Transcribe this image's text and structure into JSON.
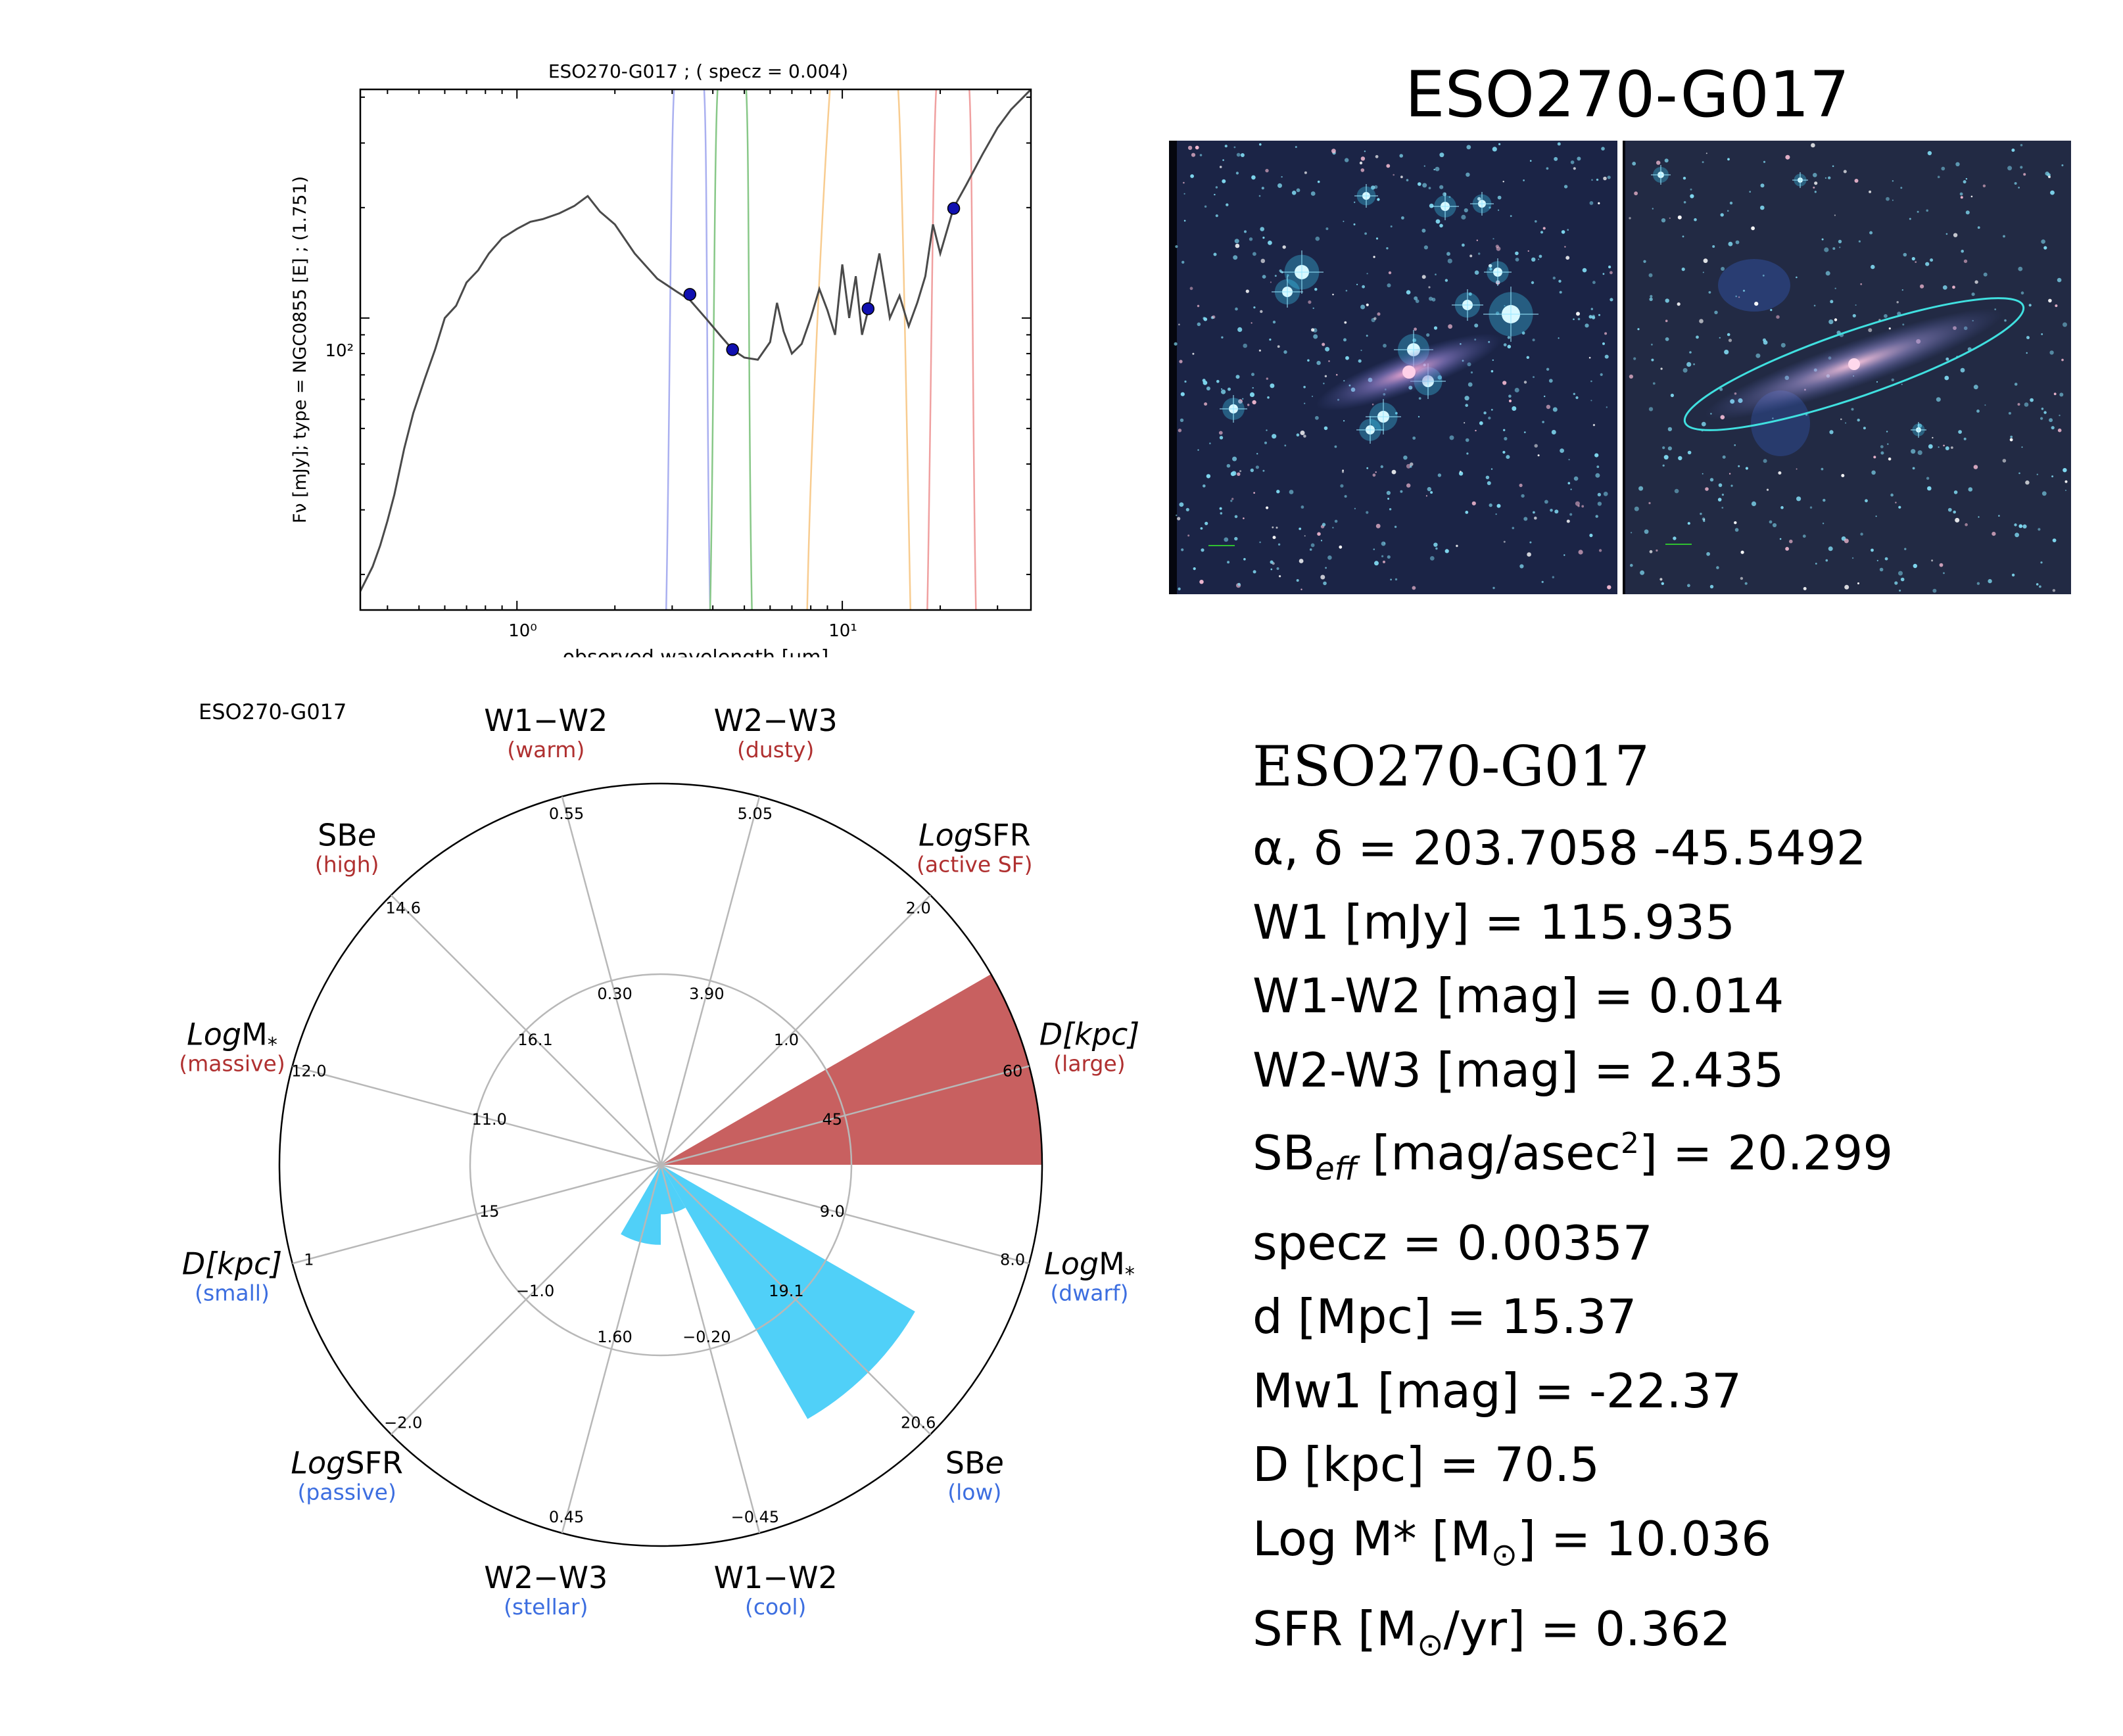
{
  "sed": {
    "title": "ESO270-G017 ; ( specz = 0.004)",
    "ylabel": "Fν [mJy];  type = NGC0855 [E] ; (1.751)",
    "xlabel": "observed wavelength [μm]",
    "x_ticks": [
      "10⁰",
      "10¹"
    ],
    "y_ticks": [
      "10²"
    ]
  },
  "image_panel": {
    "title": "ESO270-G017"
  },
  "polar": {
    "label": "ESO270-G017"
  },
  "info": {
    "name": "ESO270-G017",
    "radec": "α, δ = 203.7058 -45.5492",
    "w1": "W1 [mJy] = 115.935",
    "w1w2": "W1-W2 [mag] = 0.014",
    "w2w3": "W2-W3 [mag] = 2.435",
    "sb_prefix": "SB",
    "sb_sub": "eff",
    "sb_unit": " [mag/asec",
    "sb_sup": "2",
    "sb_value": "] = 20.299",
    "specz": "specz = 0.00357",
    "dist": "d [Mpc] = 15.37",
    "mw1": "Mw1 [mag] = -22.37",
    "diam": "D [kpc] = 70.5",
    "logm_prefix": "Log M* [M",
    "logm_sub": "⊙",
    "logm_value": "] = 10.036",
    "sfr_prefix": "SFR [M",
    "sfr_sub": "⊙",
    "sfr_value": "/yr] = 0.362"
  },
  "colors": {
    "sed_line": "#4a4a4a",
    "points": "#1010b0",
    "filter_w1": "#aab0f0",
    "filter_w2": "#88c888",
    "filter_w3": "#f8cc90",
    "filter_w4": "#f0a0a0",
    "bar_high": "#c86060",
    "bar_low": "#50d0f8",
    "axis_red": "#b03030",
    "axis_blue": "#3c6ee0"
  },
  "chart_data": [
    {
      "type": "line",
      "title": "ESO270-G017 ; ( specz = 0.004)",
      "xlabel": "observed wavelength [μm]",
      "ylabel": "Fν [mJy];  type = NGC0855 [E] ; (1.751)",
      "x_scale": "log",
      "y_scale": "log",
      "xlim": [
        0.33,
        38
      ],
      "ylim": [
        16,
        420
      ],
      "series": [
        {
          "role": "template",
          "x": [
            0.33,
            0.36,
            0.38,
            0.4,
            0.42,
            0.45,
            0.48,
            0.52,
            0.56,
            0.6,
            0.65,
            0.7,
            0.76,
            0.82,
            0.9,
            1.0,
            1.1,
            1.2,
            1.35,
            1.5,
            1.65,
            1.8,
            2.0,
            2.3,
            2.7,
            3.1,
            3.4,
            3.8,
            4.2,
            4.6,
            5.0,
            5.5,
            6.0,
            6.3,
            6.6,
            7.0,
            7.5,
            8.0,
            8.5,
            9.0,
            9.5,
            10.0,
            10.5,
            11.0,
            11.5,
            12.0,
            13.0,
            14.0,
            15.0,
            16.0,
            17.0,
            18.0,
            19.0,
            20.0,
            22.0,
            24.0,
            27.0,
            30.0,
            33.0,
            36.0,
            38.0
          ],
          "y": [
            18,
            21,
            24,
            28,
            33,
            44,
            55,
            68,
            82,
            100,
            108,
            125,
            135,
            150,
            165,
            175,
            183,
            186,
            193,
            202,
            215,
            195,
            180,
            150,
            128,
            118,
            112,
            100,
            90,
            82,
            78,
            77,
            86,
            110,
            92,
            80,
            85,
            100,
            120,
            105,
            90,
            140,
            100,
            130,
            90,
            105,
            150,
            100,
            115,
            95,
            110,
            130,
            180,
            150,
            200,
            230,
            280,
            330,
            370,
            400,
            420
          ]
        },
        {
          "role": "photometry",
          "x": [
            3.4,
            4.6,
            12.0,
            22.0
          ],
          "y": [
            116,
            82,
            106,
            199
          ]
        }
      ]
    },
    {
      "type": "polar-bar",
      "label": "ESO270-G017",
      "axes": [
        "D[kpc]",
        "LogM*",
        "SBe",
        "W1−W2",
        "W2−W3",
        "LogSFR",
        "D[kpc]",
        "LogM*",
        "SBe",
        "W1−W2",
        "W2−W3",
        "LogSFR"
      ],
      "axis_sublabels": [
        "(large)",
        "(dwarf)",
        "(low)",
        "(cool)",
        "(stellar)",
        "(passive)",
        "(small)",
        "(massive)",
        "(high)",
        "(warm)",
        "(dusty)",
        "(active SF)"
      ],
      "inner_ticks": [
        "45",
        "9.0",
        "19.1",
        "−0.20",
        "1.60",
        "−1.0",
        "15",
        "11.0",
        "16.1",
        "0.30",
        "3.90",
        "1.0"
      ],
      "outer_ticks": [
        "60",
        "8.0",
        "20.6",
        "−0.45",
        "0.45",
        "−2.0",
        "1",
        "12.0",
        "14.6",
        "0.55",
        "5.05",
        "2.0"
      ],
      "bars": [
        {
          "axis": "D[kpc] (large)",
          "radius": 1.0,
          "color": "high"
        },
        {
          "axis": "SBe (low)",
          "radius": 0.77,
          "color": "low"
        },
        {
          "axis": "W1−W2 (cool)",
          "radius": 0.13,
          "color": "low"
        },
        {
          "axis": "W2−W3 (stellar)",
          "radius": 0.21,
          "color": "low"
        }
      ]
    }
  ]
}
